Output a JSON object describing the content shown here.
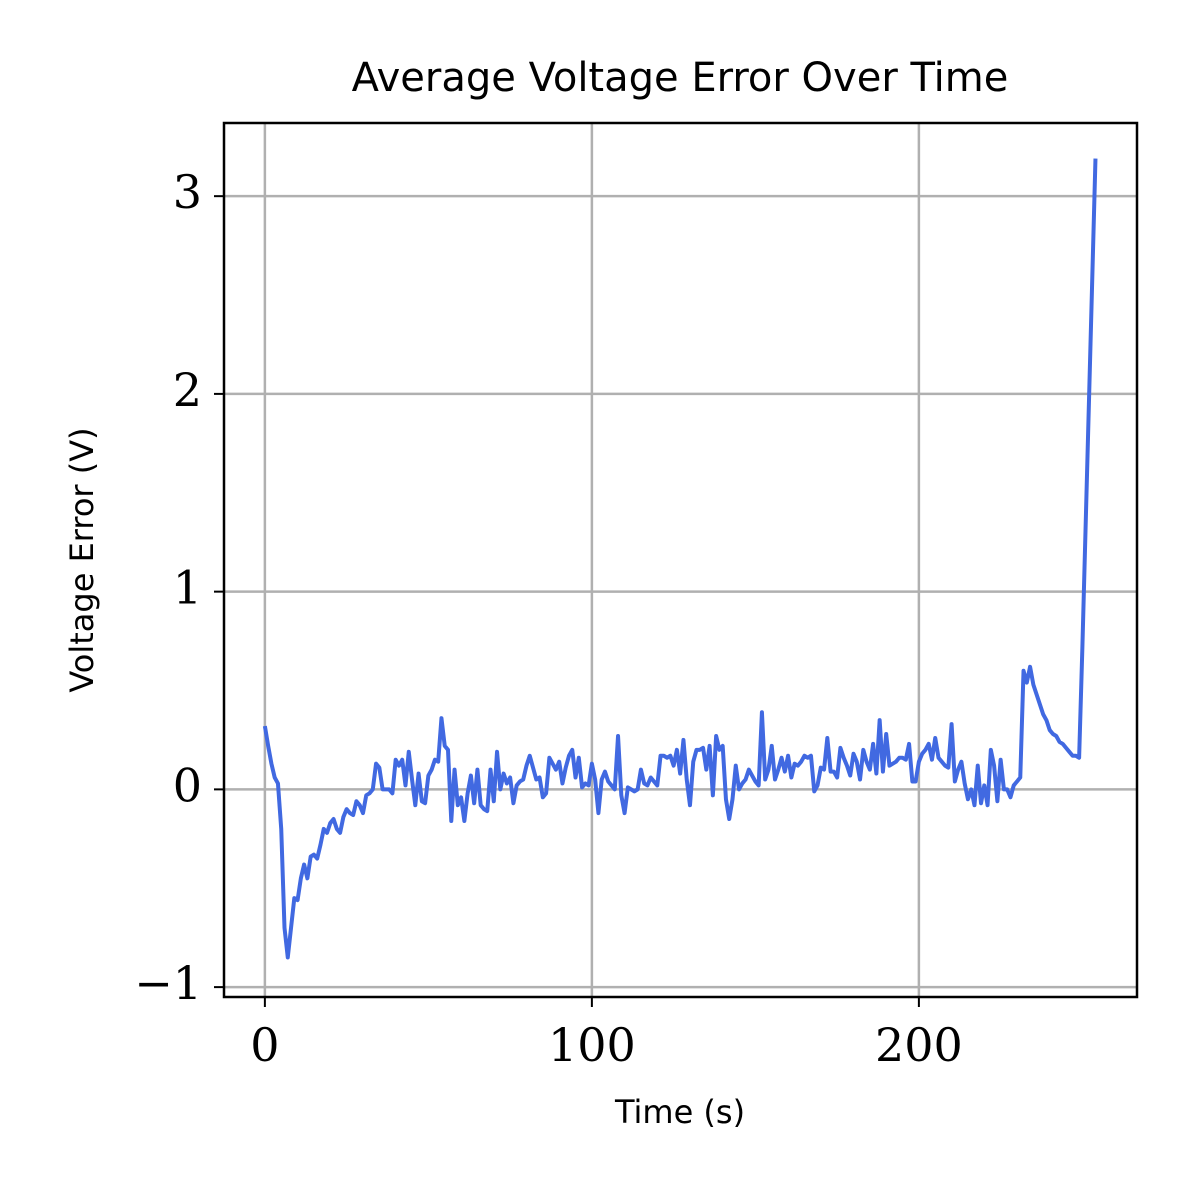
{
  "chart_data": {
    "type": "line",
    "title": "Average Voltage Error Over Time",
    "xlabel": "Time (s)",
    "ylabel": "Voltage Error (V)",
    "x": [
      0,
      1,
      2,
      3,
      4,
      5,
      6,
      7,
      8,
      9,
      10,
      11,
      12,
      13,
      14,
      15,
      16,
      17,
      18,
      19,
      20,
      21,
      22,
      23,
      24,
      25,
      26,
      27,
      28,
      29,
      30,
      31,
      32,
      33,
      34,
      35,
      36,
      37,
      38,
      39,
      40,
      41,
      42,
      43,
      44,
      45,
      46,
      47,
      48,
      49,
      50,
      51,
      52,
      53,
      54,
      55,
      56,
      57,
      58,
      59,
      60,
      61,
      62,
      63,
      64,
      65,
      66,
      67,
      68,
      69,
      70,
      71,
      72,
      73,
      74,
      75,
      76,
      77,
      78,
      79,
      80,
      81,
      82,
      83,
      84,
      85,
      86,
      87,
      88,
      89,
      90,
      91,
      92,
      93,
      94,
      95,
      96,
      97,
      98,
      99,
      100,
      101,
      102,
      103,
      104,
      105,
      106,
      107,
      108,
      109,
      110,
      111,
      112,
      113,
      114,
      115,
      116,
      117,
      118,
      119,
      120,
      121,
      122,
      123,
      124,
      125,
      126,
      127,
      128,
      129,
      130,
      131,
      132,
      133,
      134,
      135,
      136,
      137,
      138,
      139,
      140,
      141,
      142,
      143,
      144,
      145,
      146,
      147,
      148,
      149,
      150,
      151,
      152,
      153,
      154,
      155,
      156,
      157,
      158,
      159,
      160,
      161,
      162,
      163,
      164,
      165,
      166,
      167,
      168,
      169,
      170,
      171,
      172,
      173,
      174,
      175,
      176,
      177,
      178,
      179,
      180,
      181,
      182,
      183,
      184,
      185,
      186,
      187,
      188,
      189,
      190,
      191,
      192,
      193,
      194,
      195,
      196,
      197,
      198,
      199,
      200,
      201,
      202,
      203,
      204,
      205,
      206,
      207,
      208,
      209,
      210,
      211,
      212,
      213,
      214,
      215,
      216,
      217,
      218,
      219,
      220,
      221,
      222,
      223,
      224,
      225,
      226,
      227,
      228,
      229,
      230,
      231,
      232,
      233,
      234,
      235,
      236,
      237,
      238,
      239,
      240,
      241,
      242,
      243,
      244,
      245,
      246,
      247,
      248,
      249,
      250,
      254
    ],
    "series": [
      {
        "name": "Average Voltage Error",
        "color": "#4169e1",
        "values": [
          0.32,
          0.22,
          0.13,
          0.06,
          0.03,
          -0.2,
          -0.7,
          -0.85,
          -0.7,
          -0.55,
          -0.56,
          -0.45,
          -0.38,
          -0.45,
          -0.34,
          -0.33,
          -0.35,
          -0.28,
          -0.2,
          -0.22,
          -0.17,
          -0.15,
          -0.2,
          -0.22,
          -0.14,
          -0.1,
          -0.12,
          -0.13,
          -0.06,
          -0.08,
          -0.12,
          -0.03,
          -0.02,
          0.0,
          0.13,
          0.11,
          0.0,
          0.0,
          0.0,
          -0.02,
          0.15,
          0.12,
          0.15,
          0.02,
          0.19,
          0.05,
          -0.08,
          0.08,
          -0.06,
          -0.07,
          0.07,
          0.1,
          0.15,
          0.14,
          0.36,
          0.22,
          0.2,
          -0.16,
          0.1,
          -0.08,
          -0.04,
          -0.16,
          -0.02,
          0.07,
          -0.07,
          0.1,
          -0.08,
          -0.1,
          -0.11,
          0.1,
          -0.06,
          0.19,
          0.0,
          0.08,
          0.03,
          0.06,
          -0.07,
          0.02,
          0.04,
          0.05,
          0.12,
          0.17,
          0.11,
          0.05,
          0.06,
          -0.04,
          -0.02,
          0.16,
          0.13,
          0.1,
          0.14,
          0.03,
          0.11,
          0.17,
          0.2,
          0.06,
          0.16,
          0.01,
          0.03,
          0.02,
          0.13,
          0.05,
          -0.12,
          0.05,
          0.09,
          0.04,
          0.02,
          0.0,
          0.27,
          -0.03,
          -0.12,
          0.01,
          0.0,
          -0.01,
          0.0,
          0.1,
          0.03,
          0.02,
          0.06,
          0.04,
          0.02,
          0.17,
          0.17,
          0.16,
          0.17,
          0.12,
          0.2,
          0.08,
          0.25,
          0.05,
          -0.08,
          0.14,
          0.2,
          0.2,
          0.21,
          0.1,
          0.22,
          -0.03,
          0.27,
          0.2,
          0.22,
          -0.05,
          -0.15,
          -0.05,
          0.12,
          0.0,
          0.03,
          0.05,
          0.1,
          0.07,
          0.04,
          0.02,
          0.39,
          0.05,
          0.1,
          0.22,
          0.05,
          0.1,
          0.16,
          0.09,
          0.17,
          0.06,
          0.13,
          0.12,
          0.14,
          0.17,
          0.16,
          0.17,
          -0.01,
          0.02,
          0.11,
          0.1,
          0.26,
          0.09,
          0.09,
          0.06,
          0.21,
          0.16,
          0.12,
          0.07,
          0.18,
          0.14,
          0.05,
          0.2,
          0.14,
          0.1,
          0.23,
          0.08,
          0.35,
          0.09,
          0.28,
          0.12,
          0.13,
          0.14,
          0.16,
          0.16,
          0.15,
          0.23,
          0.04,
          0.04,
          0.14,
          0.18,
          0.2,
          0.23,
          0.15,
          0.26,
          0.16,
          0.14,
          0.12,
          0.11,
          0.33,
          0.04,
          0.1,
          0.14,
          0.03,
          -0.05,
          0.0,
          -0.08,
          0.12,
          -0.07,
          0.02,
          -0.08,
          0.2,
          0.12,
          -0.06,
          0.15,
          0.0,
          0.0,
          -0.04,
          0.02,
          0.04,
          0.06,
          0.6,
          0.54,
          0.62,
          0.53,
          0.48,
          0.43,
          0.38,
          0.35,
          0.3,
          0.28,
          0.27,
          0.24,
          0.23,
          0.21,
          0.19,
          0.17,
          0.17,
          0.16,
          0.72,
          3.19
        ]
      }
    ],
    "xlim": [
      -12.5,
      266.7
    ],
    "ylim": [
      -1.05,
      3.37
    ],
    "xticks": [
      0,
      100,
      200
    ],
    "yticks": [
      {
        "value": -1,
        "label": "−1"
      },
      0,
      1,
      2,
      3
    ],
    "grid": true
  }
}
